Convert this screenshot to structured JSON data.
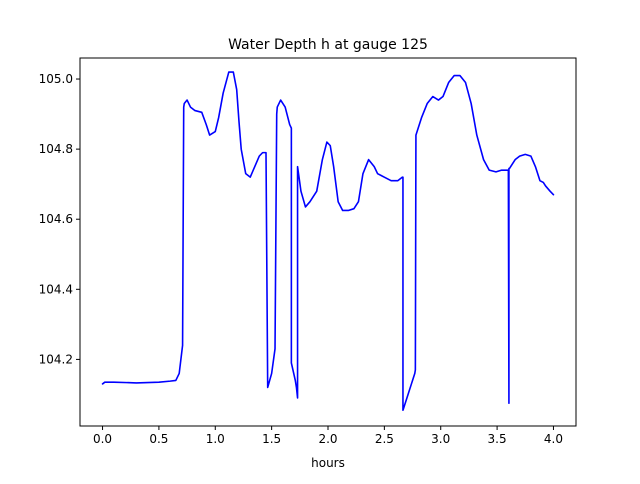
{
  "chart_data": {
    "type": "line",
    "title": "Water Depth h at gauge 125",
    "xlabel": "hours",
    "ylabel": "",
    "xlim": [
      -0.2,
      4.2
    ],
    "ylim": [
      104.01,
      105.06
    ],
    "x_ticks": [
      0.0,
      0.5,
      1.0,
      1.5,
      2.0,
      2.5,
      3.0,
      3.5,
      4.0
    ],
    "x_tick_labels": [
      "0.0",
      "0.5",
      "1.0",
      "1.5",
      "2.0",
      "2.5",
      "3.0",
      "3.5",
      "4.0"
    ],
    "y_ticks": [
      104.2,
      104.4,
      104.6,
      104.8,
      105.0
    ],
    "y_tick_labels": [
      "104.2",
      "104.4",
      "104.6",
      "104.8",
      "105.0"
    ],
    "grid": false,
    "legend": "none",
    "series": [
      {
        "color": "#0000ff",
        "x": [
          0.0,
          0.02,
          0.1,
          0.3,
          0.5,
          0.6,
          0.65,
          0.68,
          0.71,
          0.72,
          0.725,
          0.75,
          0.78,
          0.82,
          0.88,
          0.92,
          0.95,
          1.0,
          1.03,
          1.07,
          1.12,
          1.16,
          1.19,
          1.21,
          1.23,
          1.27,
          1.31,
          1.35,
          1.39,
          1.42,
          1.45,
          1.465,
          1.465,
          1.5,
          1.53,
          1.545,
          1.55,
          1.58,
          1.62,
          1.66,
          1.675,
          1.675,
          1.71,
          1.72,
          1.73,
          1.73,
          1.76,
          1.8,
          1.84,
          1.9,
          1.95,
          1.99,
          2.02,
          2.05,
          2.09,
          2.13,
          2.18,
          2.23,
          2.27,
          2.31,
          2.36,
          2.41,
          2.44,
          2.5,
          2.56,
          2.62,
          2.66,
          2.665,
          2.665,
          2.7,
          2.74,
          2.77,
          2.775,
          2.78,
          2.83,
          2.88,
          2.93,
          2.98,
          3.02,
          3.07,
          3.12,
          3.17,
          3.22,
          3.27,
          3.32,
          3.38,
          3.43,
          3.49,
          3.54,
          3.58,
          3.6,
          3.605,
          3.605,
          3.61,
          3.64,
          3.66,
          3.7,
          3.75,
          3.8,
          3.84,
          3.88,
          3.91,
          3.93,
          3.97,
          4.0
        ],
        "y": [
          104.13,
          104.135,
          104.135,
          104.133,
          104.135,
          104.138,
          104.14,
          104.16,
          104.24,
          104.92,
          104.93,
          104.94,
          104.92,
          104.91,
          104.905,
          104.87,
          104.84,
          104.85,
          104.89,
          104.96,
          105.02,
          105.02,
          104.97,
          104.88,
          104.8,
          104.73,
          104.72,
          104.75,
          104.78,
          104.79,
          104.79,
          104.12,
          104.12,
          104.16,
          104.23,
          104.9,
          104.92,
          104.94,
          104.92,
          104.87,
          104.86,
          104.19,
          104.14,
          104.12,
          104.09,
          104.75,
          104.68,
          104.635,
          104.65,
          104.68,
          104.77,
          104.82,
          104.81,
          104.75,
          104.65,
          104.625,
          104.625,
          104.63,
          104.65,
          104.73,
          104.77,
          104.75,
          104.73,
          104.72,
          104.71,
          104.71,
          104.72,
          104.72,
          104.055,
          104.09,
          104.13,
          104.16,
          104.17,
          104.84,
          104.89,
          104.93,
          104.95,
          104.94,
          104.95,
          104.99,
          105.01,
          105.01,
          104.99,
          104.93,
          104.84,
          104.77,
          104.74,
          104.735,
          104.74,
          104.74,
          104.74,
          104.075,
          104.745,
          104.745,
          104.76,
          104.77,
          104.78,
          104.785,
          104.78,
          104.75,
          104.71,
          104.705,
          104.695,
          104.68,
          104.67
        ]
      }
    ]
  }
}
